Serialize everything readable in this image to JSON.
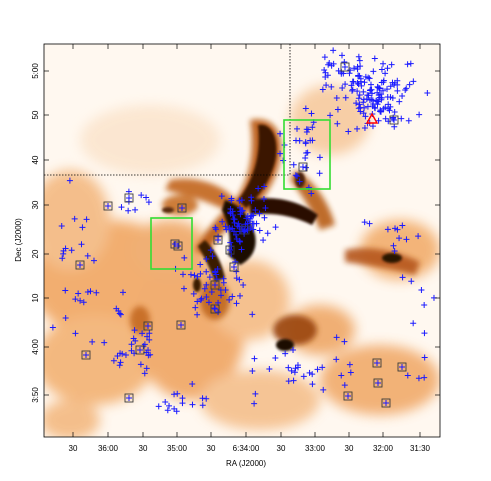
{
  "chart_data": {
    "type": "scatter",
    "xlabel": "RA (J2000)",
    "ylabel": "Dec (J2000)",
    "x_ticks": [
      "30",
      "36:00",
      "30",
      "35:00",
      "30",
      "6:34:00",
      "30",
      "33:00",
      "30",
      "32:00",
      "31:30"
    ],
    "y_ticks": [
      "5:00",
      "50",
      "40",
      "30",
      "20",
      "10",
      "4:00",
      "3:50"
    ],
    "background": "orange extinction map",
    "colors": {
      "map": "#e8862a",
      "map_dark": "#1a0a02",
      "plus_markers": "#1a1aff",
      "boxed_markers": "#3a3a3a",
      "regions": "#33dd33",
      "triangle": "#ff0000",
      "crosshair": "#000000"
    },
    "regions": [
      {
        "name": "green-box-upper-right"
      },
      {
        "name": "green-box-left"
      }
    ]
  }
}
